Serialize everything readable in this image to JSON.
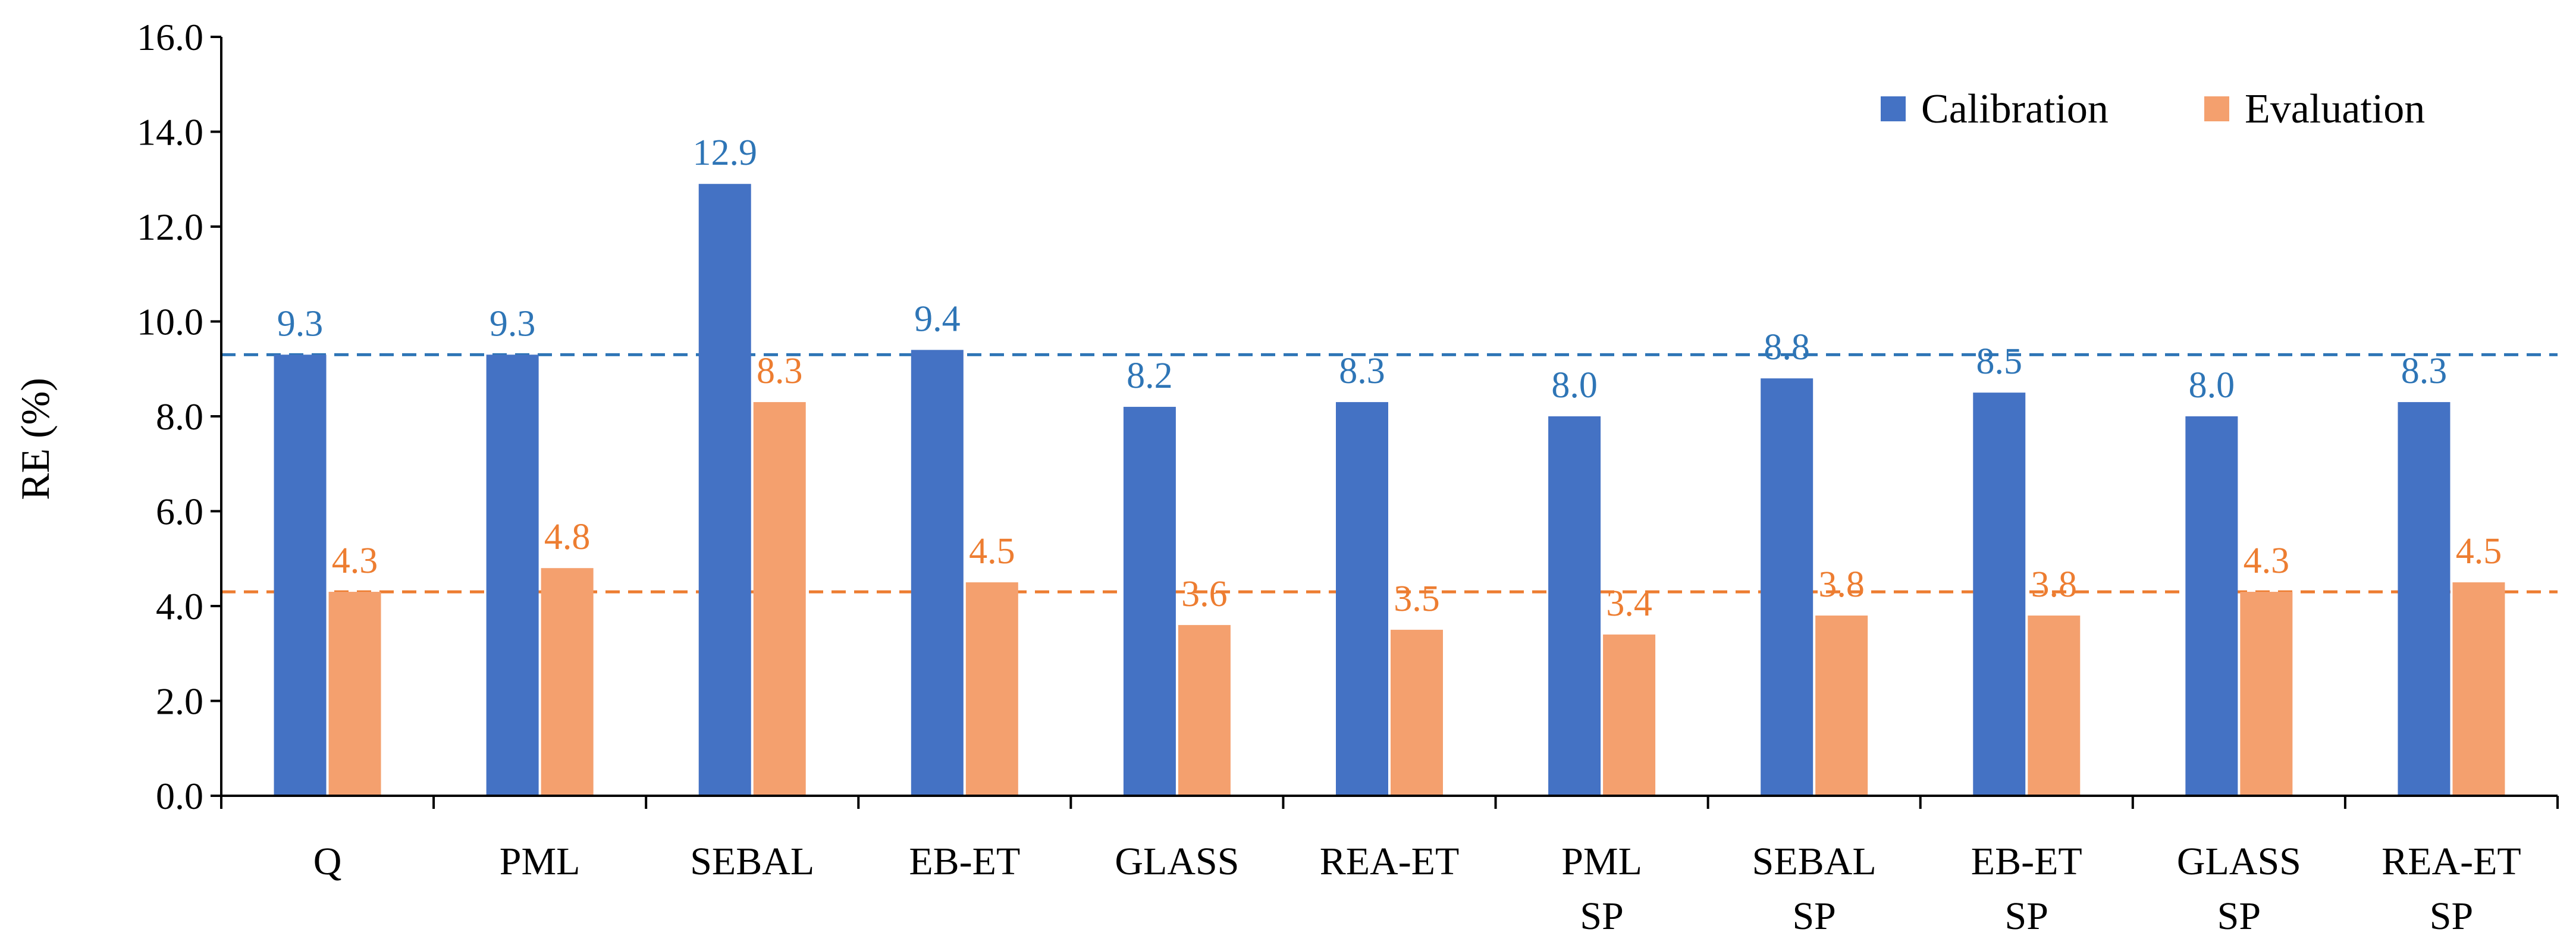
{
  "chart_data": {
    "type": "bar",
    "title": "",
    "xlabel": "",
    "ylabel": "RE (%)",
    "ylim": [
      0,
      16
    ],
    "yticks": [
      "0.0",
      "2.0",
      "4.0",
      "6.0",
      "8.0",
      "10.0",
      "12.0",
      "14.0",
      "16.0"
    ],
    "categories": [
      [
        "Q"
      ],
      [
        "PML"
      ],
      [
        "SEBAL"
      ],
      [
        "EB-ET"
      ],
      [
        "GLASS"
      ],
      [
        "REA-ET"
      ],
      [
        "PML",
        "SP"
      ],
      [
        "SEBAL",
        "SP"
      ],
      [
        "EB-ET",
        "SP"
      ],
      [
        "GLASS",
        "SP"
      ],
      [
        "REA-ET",
        "SP"
      ]
    ],
    "series": [
      {
        "name": "Calibration",
        "color": "#4472C4",
        "label_color": "#2E75B6",
        "values": [
          9.3,
          9.3,
          12.9,
          9.4,
          8.2,
          8.3,
          8.0,
          8.8,
          8.5,
          8.0,
          8.3
        ],
        "labels": [
          "9.3",
          "9.3",
          "12.9",
          "9.4",
          "8.2",
          "8.3",
          "8.0",
          "8.8",
          "8.5",
          "8.0",
          "8.3"
        ]
      },
      {
        "name": "Evaluation",
        "color": "#F4A06E",
        "label_color": "#ED7D31",
        "values": [
          4.3,
          4.8,
          8.3,
          4.5,
          3.6,
          3.5,
          3.4,
          3.8,
          3.8,
          4.3,
          4.5
        ],
        "labels": [
          "4.3",
          "4.8",
          "8.3",
          "4.5",
          "3.6",
          "3.5",
          "3.4",
          "3.8",
          "3.8",
          "4.3",
          "4.5"
        ]
      }
    ],
    "reference_lines": [
      {
        "series": "Calibration",
        "value": 9.3,
        "color": "#2E75B6",
        "style": "dashed"
      },
      {
        "series": "Evaluation",
        "value": 4.3,
        "color": "#ED7D31",
        "style": "dashed"
      }
    ],
    "legend": {
      "position": "top-right",
      "entries": [
        "Calibration",
        "Evaluation"
      ]
    },
    "grid": false
  }
}
